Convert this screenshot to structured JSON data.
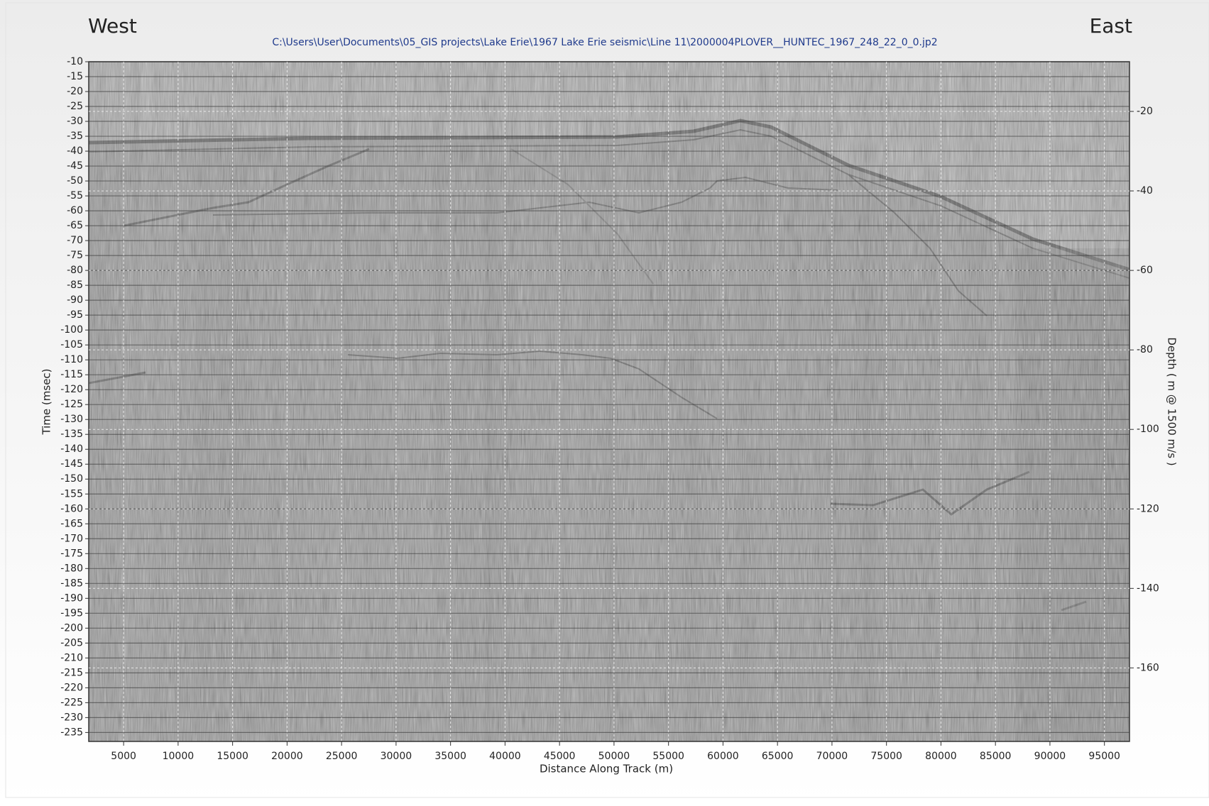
{
  "chart_data": {
    "type": "seismic",
    "title": "C:\\Users\\User\\Documents\\05_GIS projects\\Lake Erie\\1967 Lake Erie seismic\\Line 11\\2000004PLOVER__HUNTEC_1967_248_22_0_0.jp2",
    "west_label": "West",
    "east_label": "East",
    "xlabel": "Distance Along Track (m)",
    "ylabel": "Time (msec)",
    "y2label": "Depth ( m @ 1500 m/s )",
    "xlim": [
      1800,
      97300
    ],
    "xticks": [
      5000,
      10000,
      15000,
      20000,
      25000,
      30000,
      35000,
      40000,
      45000,
      50000,
      55000,
      60000,
      65000,
      70000,
      75000,
      80000,
      85000,
      90000,
      95000
    ],
    "ylim": [
      -10,
      -238
    ],
    "yticks": [
      -10,
      -15,
      -20,
      -25,
      -30,
      -35,
      -40,
      -45,
      -50,
      -55,
      -60,
      -65,
      -70,
      -75,
      -80,
      -85,
      -90,
      -95,
      -100,
      -105,
      -110,
      -115,
      -120,
      -125,
      -130,
      -135,
      -140,
      -145,
      -150,
      -155,
      -160,
      -165,
      -170,
      -175,
      -180,
      -185,
      -190,
      -195,
      -200,
      -205,
      -210,
      -215,
      -220,
      -225,
      -230,
      -235
    ],
    "y2lim": [
      -7.5,
      -178.5
    ],
    "y2ticks": [
      -20,
      -40,
      -60,
      -80,
      -100,
      -120,
      -140,
      -160
    ],
    "grid": true
  }
}
